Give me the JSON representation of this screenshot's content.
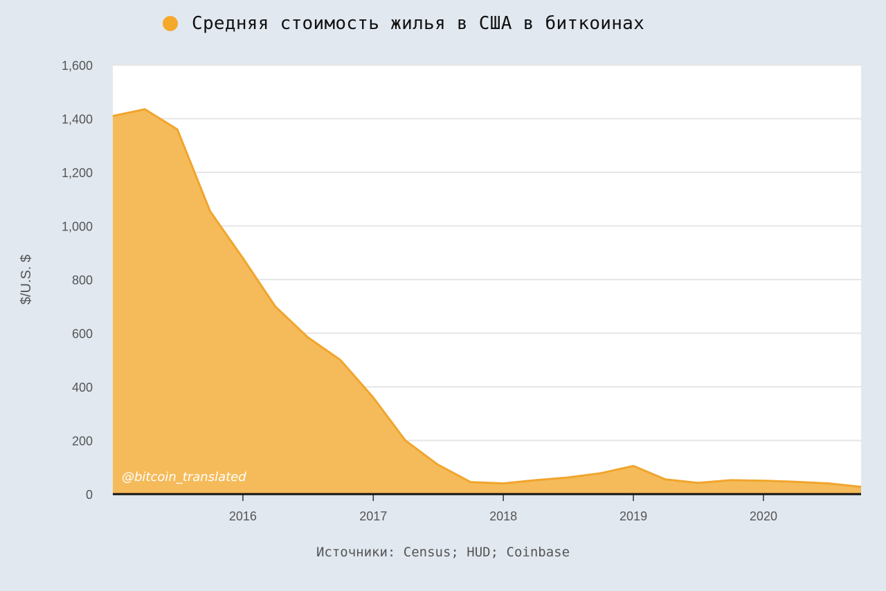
{
  "legend": {
    "label": "Средняя стоимость жилья в США в биткоинах",
    "color": "#f4a92a"
  },
  "source": "Источники: Census; HUD; Coinbase",
  "watermark": "@bitcoin_translated",
  "chart_data": {
    "type": "area",
    "ylabel": "$/U.S. $",
    "ylim": [
      0,
      1600
    ],
    "yticks": [
      0,
      200,
      400,
      600,
      800,
      1000,
      1200,
      1400,
      1600
    ],
    "ytick_labels": [
      "0",
      "200",
      "400",
      "600",
      "800",
      "1,000",
      "1,200",
      "1,400",
      "1,600"
    ],
    "xlim": [
      "2015-01-01",
      "2020-10-01"
    ],
    "xticks": [
      "2016-01-01",
      "2017-01-01",
      "2018-01-01",
      "2019-01-01",
      "2020-01-01"
    ],
    "xtick_labels": [
      "2016",
      "2017",
      "2018",
      "2019",
      "2020"
    ],
    "grid": true,
    "fill_color": "#f5bb5a",
    "line_color": "#f0a52c",
    "series": [
      {
        "x": [
          "2015-01-01",
          "2015-04-01",
          "2015-07-01",
          "2015-10-01",
          "2016-01-01",
          "2016-04-01",
          "2016-07-01",
          "2016-10-01",
          "2017-01-01",
          "2017-04-01",
          "2017-07-01",
          "2017-10-01",
          "2018-01-01",
          "2018-04-01",
          "2018-07-01",
          "2018-10-01",
          "2019-01-01",
          "2019-04-01",
          "2019-07-01",
          "2019-10-01",
          "2020-01-01",
          "2020-04-01",
          "2020-07-01",
          "2020-10-01"
        ],
        "values": [
          1410,
          1435,
          1360,
          1055,
          880,
          700,
          585,
          500,
          360,
          200,
          110,
          45,
          40,
          52,
          62,
          78,
          105,
          55,
          42,
          52,
          50,
          46,
          40,
          27
        ]
      }
    ]
  }
}
